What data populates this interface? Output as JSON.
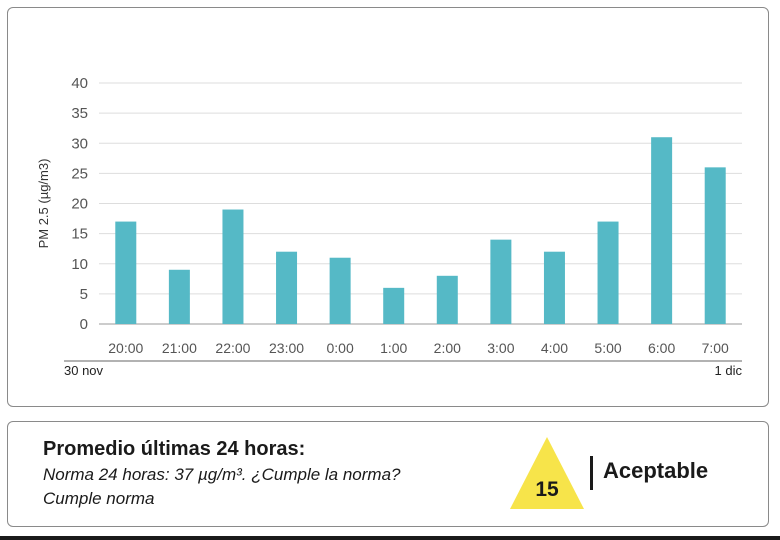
{
  "chart_data": {
    "type": "bar",
    "categories": [
      "20:00",
      "21:00",
      "22:00",
      "23:00",
      "0:00",
      "1:00",
      "2:00",
      "3:00",
      "4:00",
      "5:00",
      "6:00",
      "7:00"
    ],
    "values": [
      17,
      9,
      19,
      12,
      11,
      6,
      8,
      14,
      12,
      17,
      31,
      26
    ],
    "ylabel": "PM 2.5 (µg/m3)",
    "ylim": [
      0,
      40
    ],
    "yticks": [
      0,
      5,
      10,
      15,
      20,
      25,
      30,
      35,
      40
    ],
    "date_labels": {
      "start": "30 nov",
      "end": "1 dic"
    },
    "bar_color": "#55b9c6",
    "grid": true,
    "legend": "none"
  },
  "summary": {
    "title": "Promedio últimas 24 horas:",
    "norm_text": "Norma 24 horas: 37 µg/m³. ¿Cumple la norma?",
    "status_text": "Cumple norma",
    "average_value": "15",
    "category": "Aceptable",
    "indicator_color": "#f7e44a"
  }
}
